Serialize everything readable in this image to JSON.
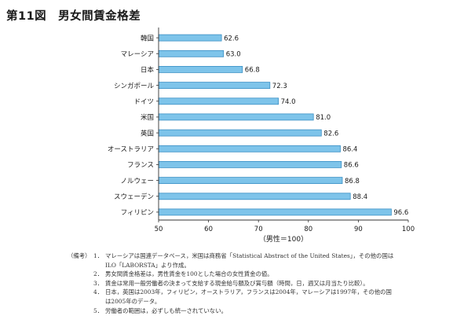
{
  "title": "第11図　男女間賃金格差",
  "chart_data": {
    "type": "bar",
    "orientation": "horizontal",
    "categories": [
      "韓国",
      "マレーシア",
      "日本",
      "シンガポール",
      "ドイツ",
      "米国",
      "英国",
      "オーストラリア",
      "フランス",
      "ノルウェー",
      "スウェーデン",
      "フィリピン"
    ],
    "values": [
      62.6,
      63.0,
      66.8,
      72.3,
      74.0,
      81.0,
      82.6,
      86.4,
      86.6,
      86.8,
      88.4,
      96.6
    ],
    "value_labels": [
      "62.6",
      "63.0",
      "66.8",
      "72.3",
      "74.0",
      "81.0",
      "82.6",
      "86.4",
      "86.6",
      "86.8",
      "88.4",
      "96.6"
    ],
    "xlim": [
      50,
      100
    ],
    "xticks": [
      "50",
      "60",
      "70",
      "80",
      "90",
      "100"
    ],
    "xlabel": "（男性＝100）",
    "bar_color": "#7ec4ea",
    "bar_edge_color": "#3a8fc4",
    "grid": false
  },
  "notes": {
    "label": "（備考）",
    "items": [
      {
        "num": "1．",
        "text": "マレーシアは国連データベース，米国は商務省「Statistical Abstract of the United States」，その他の国は"
      },
      {
        "num": "",
        "text": "ILO「LABORSTA」より作成。"
      },
      {
        "num": "2．",
        "text": "男女間賃金格差は，男性賃金を100とした場合の女性賃金の値。"
      },
      {
        "num": "3．",
        "text": "賃金は常用一般労働者の決まって支給する現金給与額及び賞与額（時間，日，週又は月当たり比較）。"
      },
      {
        "num": "4．",
        "text": "日本，英国は2003年，フィリピン，オーストラリア，フランスは2004年，マレーシアは1997年，その他の国"
      },
      {
        "num": "",
        "text": "は2005年のデータ。"
      },
      {
        "num": "5．",
        "text": "労働者の範囲は，必ずしも統一されていない。"
      }
    ]
  }
}
